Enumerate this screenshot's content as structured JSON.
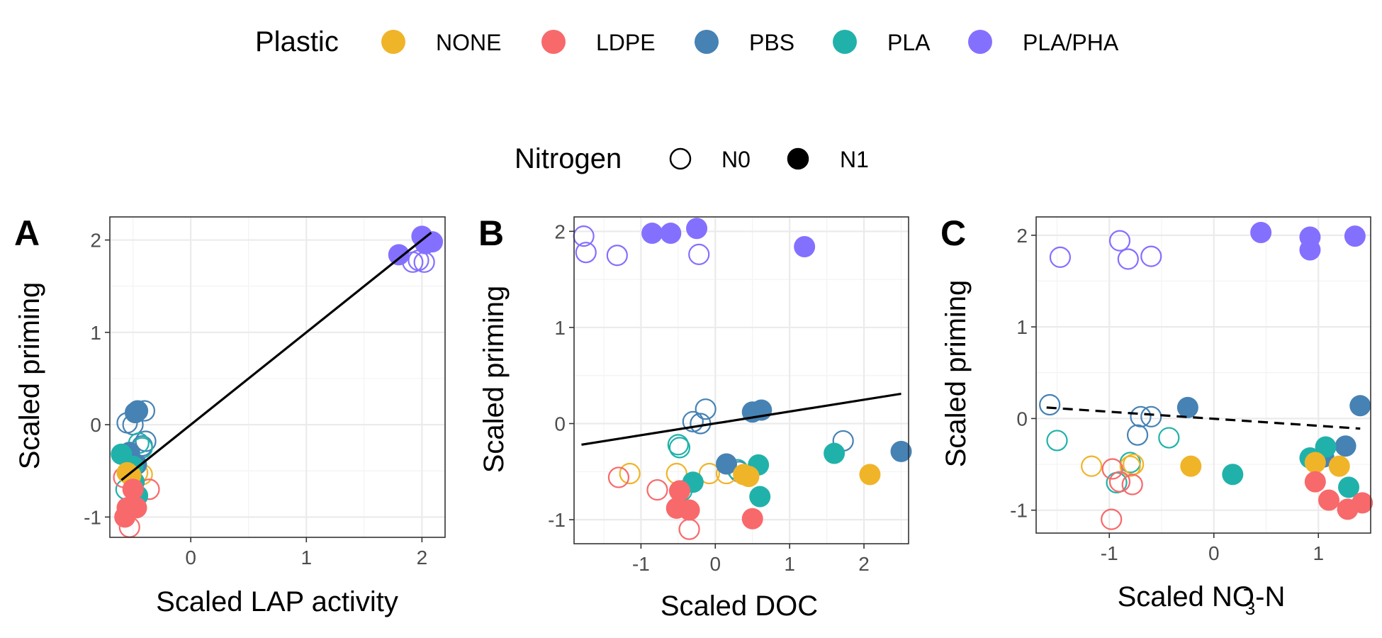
{
  "legend": {
    "plastic_title": "Plastic",
    "nitrogen_title": "Nitrogen",
    "plastic_items": [
      {
        "label": "NONE",
        "color": "#F0B429"
      },
      {
        "label": "LDPE",
        "color": "#F8696B"
      },
      {
        "label": "PBS",
        "color": "#4682B4"
      },
      {
        "label": "PLA",
        "color": "#20B2AA"
      },
      {
        "label": "PLA/PHA",
        "color": "#8470FF"
      }
    ],
    "nitrogen_items": [
      {
        "label": "N0",
        "fill": "open"
      },
      {
        "label": "N1",
        "fill": "filled"
      }
    ]
  },
  "chart_data": [
    {
      "panel": "A",
      "type": "scatter",
      "xlabel": "Scaled LAP activity",
      "ylabel": "Scaled priming",
      "xlim": [
        -0.7,
        2.2
      ],
      "ylim": [
        -1.22,
        2.25
      ],
      "xticks": [
        0,
        1,
        2
      ],
      "xtick_labels": [
        "0",
        "1",
        "2"
      ],
      "yticks": [
        -1,
        0,
        1,
        2
      ],
      "ytick_labels": [
        "-1",
        "0",
        "1",
        "2"
      ],
      "fit": {
        "style": "solid",
        "x": [
          -0.6,
          2.08
        ],
        "y": [
          -0.6,
          2.08
        ]
      },
      "points": [
        {
          "x": 1.8,
          "y": 1.84,
          "plastic": "PLA/PHA",
          "n": "N1"
        },
        {
          "x": 2.0,
          "y": 2.04,
          "plastic": "PLA/PHA",
          "n": "N1"
        },
        {
          "x": 2.03,
          "y": 1.96,
          "plastic": "PLA/PHA",
          "n": "N1"
        },
        {
          "x": 2.09,
          "y": 1.98,
          "plastic": "PLA/PHA",
          "n": "N1"
        },
        {
          "x": 1.92,
          "y": 1.76,
          "plastic": "PLA/PHA",
          "n": "N0"
        },
        {
          "x": 1.97,
          "y": 1.78,
          "plastic": "PLA/PHA",
          "n": "N0"
        },
        {
          "x": 2.02,
          "y": 1.76,
          "plastic": "PLA/PHA",
          "n": "N0"
        },
        {
          "x": -0.55,
          "y": 0.02,
          "plastic": "PBS",
          "n": "N0"
        },
        {
          "x": -0.5,
          "y": 0.0,
          "plastic": "PBS",
          "n": "N0"
        },
        {
          "x": -0.4,
          "y": 0.15,
          "plastic": "PBS",
          "n": "N0"
        },
        {
          "x": -0.39,
          "y": -0.18,
          "plastic": "PBS",
          "n": "N0"
        },
        {
          "x": -0.42,
          "y": -0.23,
          "plastic": "PBS",
          "n": "N0"
        },
        {
          "x": -0.48,
          "y": 0.13,
          "plastic": "PBS",
          "n": "N1"
        },
        {
          "x": -0.46,
          "y": 0.15,
          "plastic": "PBS",
          "n": "N1"
        },
        {
          "x": -0.53,
          "y": -0.3,
          "plastic": "PBS",
          "n": "N1"
        },
        {
          "x": -0.47,
          "y": -0.43,
          "plastic": "PBS",
          "n": "N1"
        },
        {
          "x": -0.6,
          "y": -0.32,
          "plastic": "PLA",
          "n": "N1"
        },
        {
          "x": -0.5,
          "y": -0.45,
          "plastic": "PLA",
          "n": "N1"
        },
        {
          "x": -0.49,
          "y": -0.62,
          "plastic": "PLA",
          "n": "N1"
        },
        {
          "x": -0.46,
          "y": -0.77,
          "plastic": "PLA",
          "n": "N1"
        },
        {
          "x": -0.45,
          "y": -0.2,
          "plastic": "PLA",
          "n": "N0"
        },
        {
          "x": -0.42,
          "y": -0.25,
          "plastic": "PLA",
          "n": "N0"
        },
        {
          "x": -0.56,
          "y": -0.7,
          "plastic": "PLA",
          "n": "N0"
        },
        {
          "x": -0.55,
          "y": -0.52,
          "plastic": "NONE",
          "n": "N1"
        },
        {
          "x": -0.52,
          "y": -0.55,
          "plastic": "NONE",
          "n": "N1"
        },
        {
          "x": -0.42,
          "y": -0.54,
          "plastic": "NONE",
          "n": "N0"
        },
        {
          "x": -0.46,
          "y": -0.52,
          "plastic": "NONE",
          "n": "N0"
        },
        {
          "x": -0.55,
          "y": -0.9,
          "plastic": "LDPE",
          "n": "N1"
        },
        {
          "x": -0.57,
          "y": -1.0,
          "plastic": "LDPE",
          "n": "N1"
        },
        {
          "x": -0.47,
          "y": -0.9,
          "plastic": "LDPE",
          "n": "N1"
        },
        {
          "x": -0.5,
          "y": -0.7,
          "plastic": "LDPE",
          "n": "N1"
        },
        {
          "x": -0.36,
          "y": -0.7,
          "plastic": "LDPE",
          "n": "N0"
        },
        {
          "x": -0.58,
          "y": -0.57,
          "plastic": "LDPE",
          "n": "N0"
        },
        {
          "x": -0.53,
          "y": -1.11,
          "plastic": "LDPE",
          "n": "N0"
        }
      ]
    },
    {
      "panel": "B",
      "type": "scatter",
      "xlabel": "Scaled DOC",
      "ylabel": "Scaled priming",
      "xlim": [
        -1.9,
        2.6
      ],
      "ylim": [
        -1.25,
        2.15
      ],
      "xticks": [
        -1,
        0,
        1,
        2
      ],
      "xtick_labels": [
        "-1",
        "0",
        "1",
        "2"
      ],
      "yticks": [
        -1,
        0,
        1,
        2
      ],
      "ytick_labels": [
        "-1",
        "0",
        "1",
        "2"
      ],
      "fit": {
        "style": "solid",
        "x": [
          -1.8,
          2.5
        ],
        "y": [
          -0.22,
          0.31
        ]
      },
      "points": [
        {
          "x": -1.77,
          "y": 1.95,
          "plastic": "PLA/PHA",
          "n": "N0"
        },
        {
          "x": -1.74,
          "y": 1.78,
          "plastic": "PLA/PHA",
          "n": "N0"
        },
        {
          "x": -1.32,
          "y": 1.75,
          "plastic": "PLA/PHA",
          "n": "N0"
        },
        {
          "x": -0.22,
          "y": 1.76,
          "plastic": "PLA/PHA",
          "n": "N0"
        },
        {
          "x": -0.85,
          "y": 1.98,
          "plastic": "PLA/PHA",
          "n": "N1"
        },
        {
          "x": -0.6,
          "y": 1.98,
          "plastic": "PLA/PHA",
          "n": "N1"
        },
        {
          "x": -0.25,
          "y": 2.03,
          "plastic": "PLA/PHA",
          "n": "N1"
        },
        {
          "x": 1.2,
          "y": 1.84,
          "plastic": "PLA/PHA",
          "n": "N1"
        },
        {
          "x": -0.3,
          "y": 0.02,
          "plastic": "PBS",
          "n": "N0"
        },
        {
          "x": -0.2,
          "y": 0.0,
          "plastic": "PBS",
          "n": "N0"
        },
        {
          "x": -0.13,
          "y": 0.15,
          "plastic": "PBS",
          "n": "N0"
        },
        {
          "x": 1.72,
          "y": -0.18,
          "plastic": "PBS",
          "n": "N0"
        },
        {
          "x": 0.32,
          "y": -0.5,
          "plastic": "PBS",
          "n": "N0"
        },
        {
          "x": 0.5,
          "y": 0.12,
          "plastic": "PBS",
          "n": "N1"
        },
        {
          "x": 0.62,
          "y": 0.14,
          "plastic": "PBS",
          "n": "N1"
        },
        {
          "x": 0.15,
          "y": -0.42,
          "plastic": "PBS",
          "n": "N1"
        },
        {
          "x": 2.5,
          "y": -0.29,
          "plastic": "PBS",
          "n": "N1"
        },
        {
          "x": -0.5,
          "y": -0.22,
          "plastic": "PLA",
          "n": "N0"
        },
        {
          "x": -0.48,
          "y": -0.25,
          "plastic": "PLA",
          "n": "N0"
        },
        {
          "x": 0.3,
          "y": -0.48,
          "plastic": "PLA",
          "n": "N0"
        },
        {
          "x": -0.45,
          "y": -0.7,
          "plastic": "PLA",
          "n": "N0"
        },
        {
          "x": 0.58,
          "y": -0.43,
          "plastic": "PLA",
          "n": "N1"
        },
        {
          "x": 0.6,
          "y": -0.76,
          "plastic": "PLA",
          "n": "N1"
        },
        {
          "x": 1.6,
          "y": -0.31,
          "plastic": "PLA",
          "n": "N1"
        },
        {
          "x": -0.3,
          "y": -0.61,
          "plastic": "PLA",
          "n": "N1"
        },
        {
          "x": -1.15,
          "y": -0.52,
          "plastic": "NONE",
          "n": "N0"
        },
        {
          "x": -0.52,
          "y": -0.52,
          "plastic": "NONE",
          "n": "N0"
        },
        {
          "x": -0.08,
          "y": -0.52,
          "plastic": "NONE",
          "n": "N0"
        },
        {
          "x": 0.15,
          "y": -0.52,
          "plastic": "NONE",
          "n": "N0"
        },
        {
          "x": 0.38,
          "y": -0.53,
          "plastic": "NONE",
          "n": "N1"
        },
        {
          "x": 0.45,
          "y": -0.55,
          "plastic": "NONE",
          "n": "N1"
        },
        {
          "x": 2.08,
          "y": -0.53,
          "plastic": "NONE",
          "n": "N1"
        },
        {
          "x": -1.3,
          "y": -0.56,
          "plastic": "LDPE",
          "n": "N0"
        },
        {
          "x": -0.78,
          "y": -0.69,
          "plastic": "LDPE",
          "n": "N0"
        },
        {
          "x": -0.35,
          "y": -1.1,
          "plastic": "LDPE",
          "n": "N0"
        },
        {
          "x": -0.52,
          "y": -0.88,
          "plastic": "LDPE",
          "n": "N1"
        },
        {
          "x": -0.35,
          "y": -0.9,
          "plastic": "LDPE",
          "n": "N1"
        },
        {
          "x": -0.48,
          "y": -0.7,
          "plastic": "LDPE",
          "n": "N1"
        },
        {
          "x": 0.5,
          "y": -0.99,
          "plastic": "LDPE",
          "n": "N1"
        }
      ]
    },
    {
      "panel": "C",
      "type": "scatter",
      "xlabel_main": "Scaled NO",
      "xlabel_sub": "3",
      "xlabel_sup": "-",
      "xlabel_tail": "-N",
      "ylabel": "Scaled priming",
      "xlim": [
        -1.7,
        1.5
      ],
      "ylim": [
        -1.25,
        2.2
      ],
      "xticks": [
        -1,
        0,
        1
      ],
      "xtick_labels": [
        "-1",
        "0",
        "1"
      ],
      "yticks": [
        -1,
        0,
        1,
        2
      ],
      "ytick_labels": [
        "-1",
        "0",
        "1",
        "2"
      ],
      "fit": {
        "style": "dashed",
        "x": [
          -1.6,
          1.4
        ],
        "y": [
          0.12,
          -0.11
        ]
      },
      "points": [
        {
          "x": -1.47,
          "y": 1.76,
          "plastic": "PLA/PHA",
          "n": "N0"
        },
        {
          "x": -0.9,
          "y": 1.94,
          "plastic": "PLA/PHA",
          "n": "N0"
        },
        {
          "x": -0.82,
          "y": 1.74,
          "plastic": "PLA/PHA",
          "n": "N0"
        },
        {
          "x": -0.6,
          "y": 1.77,
          "plastic": "PLA/PHA",
          "n": "N0"
        },
        {
          "x": 0.45,
          "y": 2.03,
          "plastic": "PLA/PHA",
          "n": "N1"
        },
        {
          "x": 0.92,
          "y": 1.98,
          "plastic": "PLA/PHA",
          "n": "N1"
        },
        {
          "x": 0.92,
          "y": 1.84,
          "plastic": "PLA/PHA",
          "n": "N1"
        },
        {
          "x": 1.35,
          "y": 1.99,
          "plastic": "PLA/PHA",
          "n": "N1"
        },
        {
          "x": -1.57,
          "y": 0.15,
          "plastic": "PBS",
          "n": "N0"
        },
        {
          "x": -0.7,
          "y": 0.02,
          "plastic": "PBS",
          "n": "N0"
        },
        {
          "x": -0.6,
          "y": 0.02,
          "plastic": "PBS",
          "n": "N0"
        },
        {
          "x": -0.73,
          "y": -0.18,
          "plastic": "PBS",
          "n": "N0"
        },
        {
          "x": -0.25,
          "y": 0.12,
          "plastic": "PBS",
          "n": "N1"
        },
        {
          "x": 1.4,
          "y": 0.14,
          "plastic": "PBS",
          "n": "N1"
        },
        {
          "x": 1.26,
          "y": -0.3,
          "plastic": "PBS",
          "n": "N1"
        },
        {
          "x": 1.05,
          "y": -0.42,
          "plastic": "PBS",
          "n": "N1"
        },
        {
          "x": -1.5,
          "y": -0.24,
          "plastic": "PLA",
          "n": "N0"
        },
        {
          "x": -0.43,
          "y": -0.21,
          "plastic": "PLA",
          "n": "N0"
        },
        {
          "x": -0.8,
          "y": -0.48,
          "plastic": "PLA",
          "n": "N0"
        },
        {
          "x": -0.93,
          "y": -0.7,
          "plastic": "PLA",
          "n": "N0"
        },
        {
          "x": 0.18,
          "y": -0.61,
          "plastic": "PLA",
          "n": "N1"
        },
        {
          "x": 0.92,
          "y": -0.43,
          "plastic": "PLA",
          "n": "N1"
        },
        {
          "x": 1.07,
          "y": -0.31,
          "plastic": "PLA",
          "n": "N1"
        },
        {
          "x": 1.29,
          "y": -0.75,
          "plastic": "PLA",
          "n": "N1"
        },
        {
          "x": -1.17,
          "y": -0.52,
          "plastic": "NONE",
          "n": "N0"
        },
        {
          "x": -0.8,
          "y": -0.52,
          "plastic": "NONE",
          "n": "N0"
        },
        {
          "x": -0.77,
          "y": -0.5,
          "plastic": "NONE",
          "n": "N0"
        },
        {
          "x": -0.22,
          "y": -0.52,
          "plastic": "NONE",
          "n": "N1"
        },
        {
          "x": 0.97,
          "y": -0.48,
          "plastic": "NONE",
          "n": "N1"
        },
        {
          "x": 1.2,
          "y": -0.52,
          "plastic": "NONE",
          "n": "N1"
        },
        {
          "x": -0.97,
          "y": -0.55,
          "plastic": "LDPE",
          "n": "N0"
        },
        {
          "x": -0.9,
          "y": -0.69,
          "plastic": "LDPE",
          "n": "N0"
        },
        {
          "x": -0.78,
          "y": -0.72,
          "plastic": "LDPE",
          "n": "N0"
        },
        {
          "x": -0.98,
          "y": -1.1,
          "plastic": "LDPE",
          "n": "N0"
        },
        {
          "x": 0.97,
          "y": -0.69,
          "plastic": "LDPE",
          "n": "N1"
        },
        {
          "x": 1.1,
          "y": -0.89,
          "plastic": "LDPE",
          "n": "N1"
        },
        {
          "x": 1.28,
          "y": -0.99,
          "plastic": "LDPE",
          "n": "N1"
        },
        {
          "x": 1.42,
          "y": -0.92,
          "plastic": "LDPE",
          "n": "N1"
        }
      ]
    }
  ]
}
